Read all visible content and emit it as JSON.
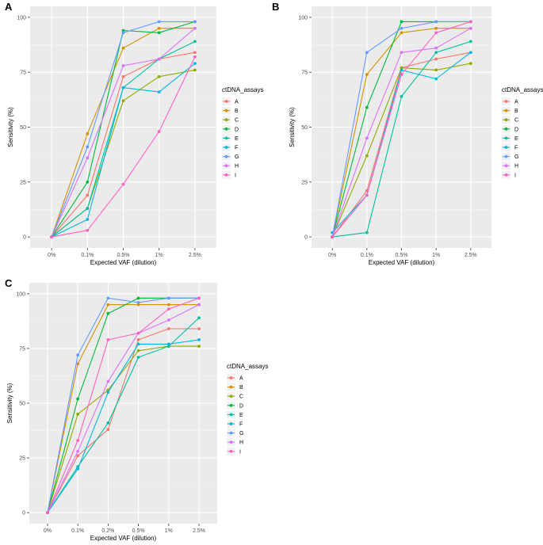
{
  "chart_data": [
    {
      "panel_label": "A",
      "type": "line",
      "categories": [
        "0%",
        "0.1%",
        "0.5%",
        "1%",
        "2.5%"
      ],
      "xlabel": "Expected VAF (dilution)",
      "ylabel": "Sensitivity (%)",
      "ylim": [
        0,
        100
      ],
      "yticks": [
        0,
        25,
        50,
        75,
        100
      ],
      "grid": true,
      "legend_title": "ctDNA_assays",
      "legend_position": "right",
      "series": [
        {
          "name": "A",
          "color": "#F8766D",
          "values": [
            0,
            19,
            73,
            81,
            84
          ]
        },
        {
          "name": "B",
          "color": "#D39200",
          "values": [
            0,
            47,
            86,
            95,
            95
          ]
        },
        {
          "name": "C",
          "color": "#93AA00",
          "values": [
            0,
            13,
            62,
            73,
            76
          ]
        },
        {
          "name": "D",
          "color": "#00BA38",
          "values": [
            0,
            25,
            94,
            93,
            98
          ]
        },
        {
          "name": "E",
          "color": "#00C19F",
          "values": [
            0,
            13,
            68,
            81,
            89
          ]
        },
        {
          "name": "F",
          "color": "#00B9E3",
          "values": [
            0,
            8,
            68,
            66,
            79
          ]
        },
        {
          "name": "G",
          "color": "#619CFF",
          "values": [
            0,
            41,
            93,
            98,
            98
          ]
        },
        {
          "name": "H",
          "color": "#DB72FB",
          "values": [
            0,
            36,
            78,
            81,
            95
          ]
        },
        {
          "name": "I",
          "color": "#FF61C3",
          "values": [
            0,
            3,
            24,
            48,
            82
          ]
        }
      ]
    },
    {
      "panel_label": "B",
      "type": "line",
      "categories": [
        "0%",
        "0.1%",
        "0.5%",
        "1%",
        "2.5%"
      ],
      "xlabel": "Expected VAF (dilution)",
      "ylabel": "Sensitivity (%)",
      "ylim": [
        0,
        100
      ],
      "yticks": [
        0,
        25,
        50,
        75,
        100
      ],
      "grid": true,
      "legend_title": "ctDNA_assays",
      "legend_position": "right",
      "series": [
        {
          "name": "A",
          "color": "#F8766D",
          "values": [
            0,
            21,
            77,
            81,
            84
          ]
        },
        {
          "name": "B",
          "color": "#D39200",
          "values": [
            0,
            74,
            93,
            95,
            95
          ]
        },
        {
          "name": "C",
          "color": "#93AA00",
          "values": [
            0,
            37,
            77,
            76,
            79
          ]
        },
        {
          "name": "D",
          "color": "#00BA38",
          "values": [
            0,
            59,
            98,
            98,
            98
          ]
        },
        {
          "name": "E",
          "color": "#00C19F",
          "values": [
            0,
            2,
            64,
            84,
            89
          ]
        },
        {
          "name": "F",
          "color": "#00B9E3",
          "values": [
            2,
            19,
            76,
            72,
            84
          ]
        },
        {
          "name": "G",
          "color": "#619CFF",
          "values": [
            0,
            84,
            95,
            98,
            98
          ]
        },
        {
          "name": "H",
          "color": "#DB72FB",
          "values": [
            0,
            45,
            84,
            86,
            95
          ]
        },
        {
          "name": "I",
          "color": "#FF61C3",
          "values": [
            0,
            19,
            74,
            93,
            98
          ]
        }
      ]
    },
    {
      "panel_label": "C",
      "type": "line",
      "categories": [
        "0%",
        "0.1%",
        "0.2%",
        "0.5%",
        "1%",
        "2.5%"
      ],
      "xlabel": "Expected VAF (dilution)",
      "ylabel": "Sensitivity (%)",
      "ylim": [
        0,
        100
      ],
      "yticks": [
        0,
        25,
        50,
        75,
        100
      ],
      "grid": true,
      "legend_title": "ctDNA_assays",
      "legend_position": "right",
      "series": [
        {
          "name": "A",
          "color": "#F8766D",
          "values": [
            0,
            26,
            38,
            79,
            84,
            84
          ]
        },
        {
          "name": "B",
          "color": "#D39200",
          "values": [
            0,
            68,
            95,
            95,
            95,
            95
          ]
        },
        {
          "name": "C",
          "color": "#93AA00",
          "values": [
            0,
            45,
            56,
            74,
            76,
            76
          ]
        },
        {
          "name": "D",
          "color": "#00BA38",
          "values": [
            0,
            52,
            91,
            98,
            98,
            98
          ]
        },
        {
          "name": "E",
          "color": "#00C19F",
          "values": [
            0,
            21,
            41,
            71,
            76,
            89
          ]
        },
        {
          "name": "F",
          "color": "#00B9E3",
          "values": [
            0,
            20,
            55,
            77,
            77,
            79
          ]
        },
        {
          "name": "G",
          "color": "#619CFF",
          "values": [
            0,
            72,
            98,
            96,
            98,
            98
          ]
        },
        {
          "name": "H",
          "color": "#DB72FB",
          "values": [
            0,
            28,
            60,
            82,
            88,
            95
          ]
        },
        {
          "name": "I",
          "color": "#FF61C3",
          "values": [
            0,
            33,
            79,
            82,
            93,
            98
          ]
        }
      ]
    }
  ]
}
